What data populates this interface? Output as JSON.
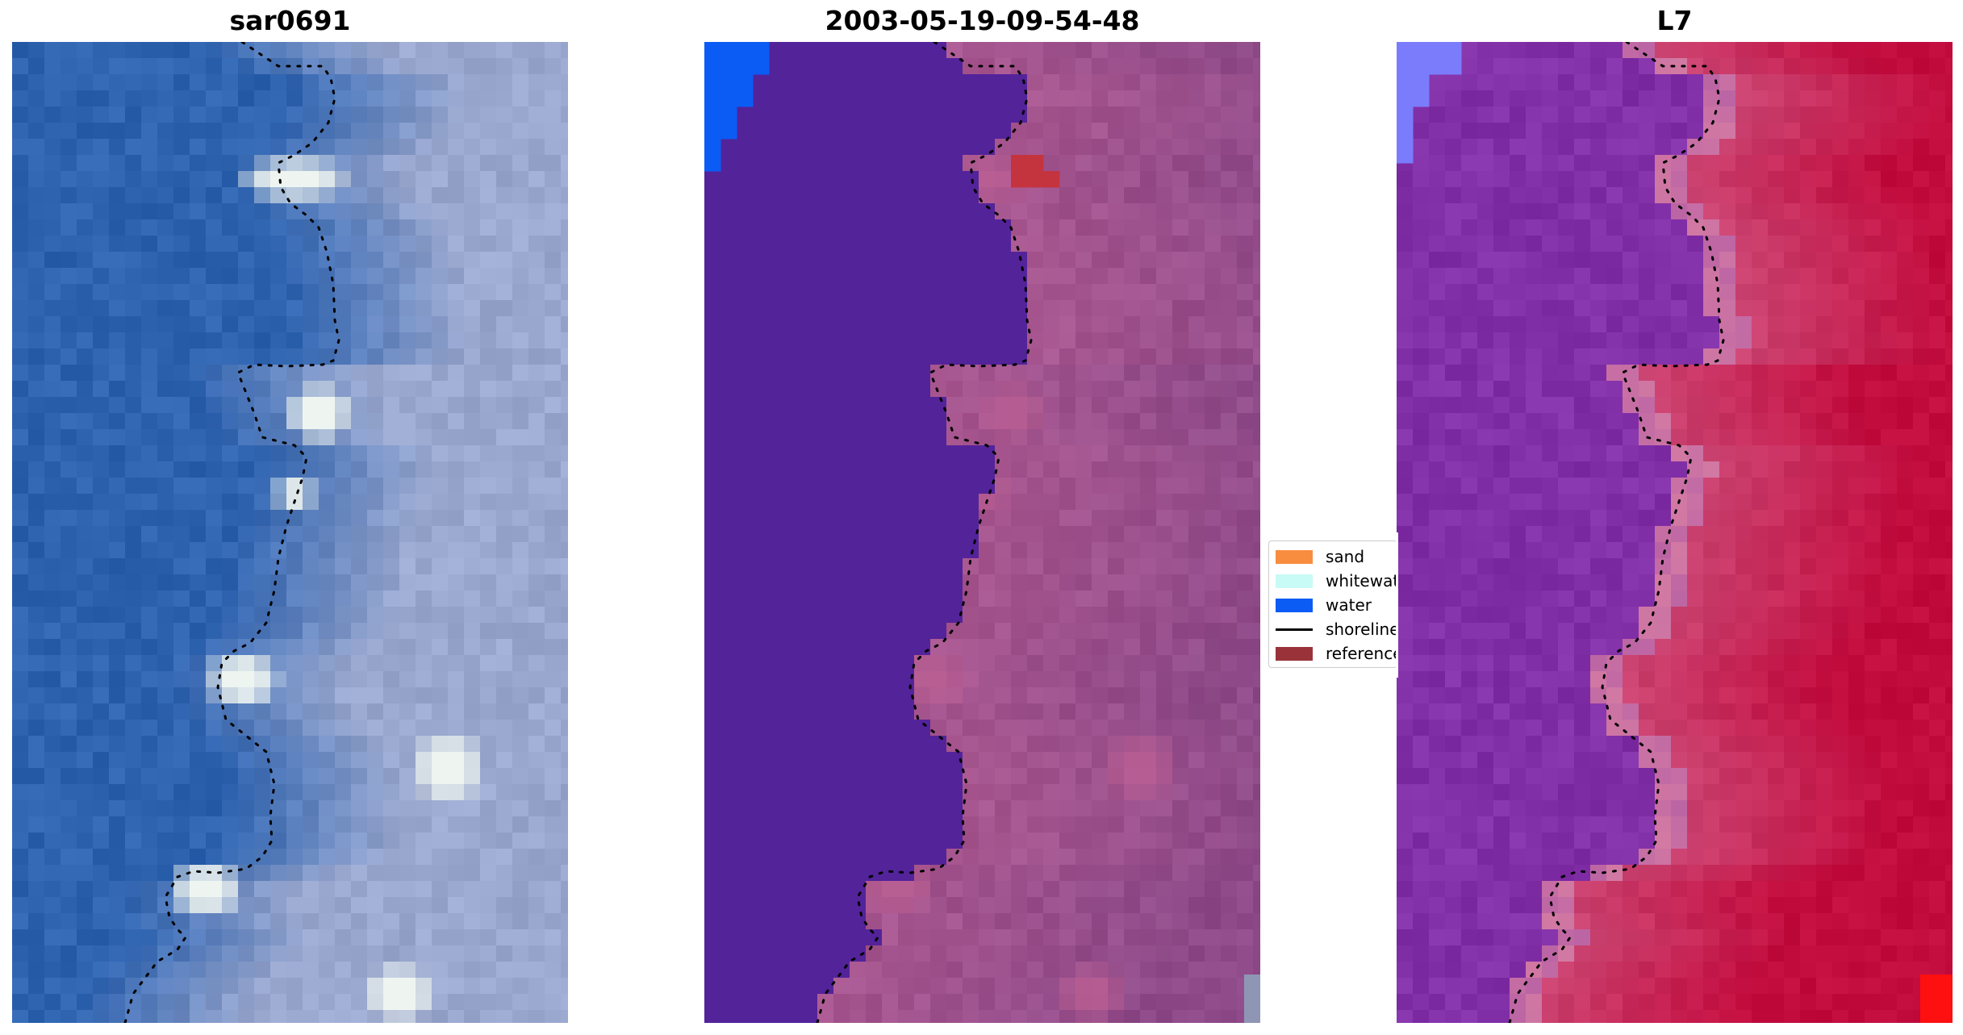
{
  "panels": [
    {
      "title": "sar0691",
      "style": "rgb"
    },
    {
      "title": "2003-05-19-09-54-48",
      "style": "classified"
    },
    {
      "title": "L7",
      "style": "index"
    }
  ],
  "legend": {
    "items": [
      {
        "label": "sand",
        "color": "#f98d3f",
        "kind": "swatch"
      },
      {
        "label": "whitewater",
        "color": "#c8fbf5",
        "kind": "swatch"
      },
      {
        "label": "water",
        "color": "#0a5cf5",
        "kind": "swatch"
      },
      {
        "label": "shoreline",
        "color": "#000000",
        "kind": "line"
      },
      {
        "label": "reference",
        "color": "#9a3339",
        "kind": "swatch"
      }
    ]
  },
  "colors": {
    "rgb_water": "#2e63b0",
    "rgb_land": "#9aa8cf",
    "rgb_white": "#eef4f0",
    "class_water_zone": "#53239a",
    "class_land": "#8e4a89",
    "class_bright": "#b85e93",
    "class_reference": "#c4343f",
    "water_blue": "#0a5cf5",
    "index_water": "#8230a8",
    "index_land": "#c20c3e",
    "index_edge": "#d37aa3",
    "index_corner": "#7a7cfb",
    "corner_red": "#ff1010",
    "corner_grey": "#8f95b5",
    "shoreline": "#000000"
  }
}
